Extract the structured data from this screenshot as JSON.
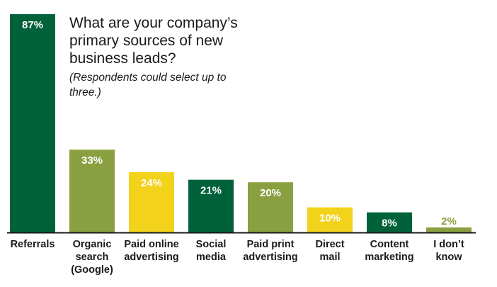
{
  "chart_data": {
    "type": "bar",
    "title": "What are your company’s primary sources of new business leads?",
    "subtitle": "(Respondents could select up to three.)",
    "categories": [
      [
        "Referrals"
      ],
      [
        "Organic",
        "search",
        "(Google)"
      ],
      [
        "Paid online",
        "advertising"
      ],
      [
        "Social",
        "media"
      ],
      [
        "Paid print",
        "advertising"
      ],
      [
        "Direct",
        "mail"
      ],
      [
        "Content",
        "marketing"
      ],
      [
        "I don’t",
        "know"
      ]
    ],
    "values": [
      87,
      33,
      24,
      21,
      20,
      10,
      8,
      2
    ],
    "value_labels": [
      "87%",
      "33%",
      "24%",
      "21%",
      "20%",
      "10%",
      "8%",
      "2%"
    ],
    "ylim": [
      0,
      87
    ],
    "colors": [
      "#00613a",
      "#8aa040",
      "#f2d21b",
      "#00613a",
      "#8aa040",
      "#f2d21b",
      "#00613a",
      "#8aa040"
    ],
    "label_colors": [
      "#ffffff",
      "#ffffff",
      "#ffffff",
      "#ffffff",
      "#ffffff",
      "#ffffff",
      "#ffffff",
      "#8aa040"
    ],
    "grid": false,
    "legend": "none"
  }
}
